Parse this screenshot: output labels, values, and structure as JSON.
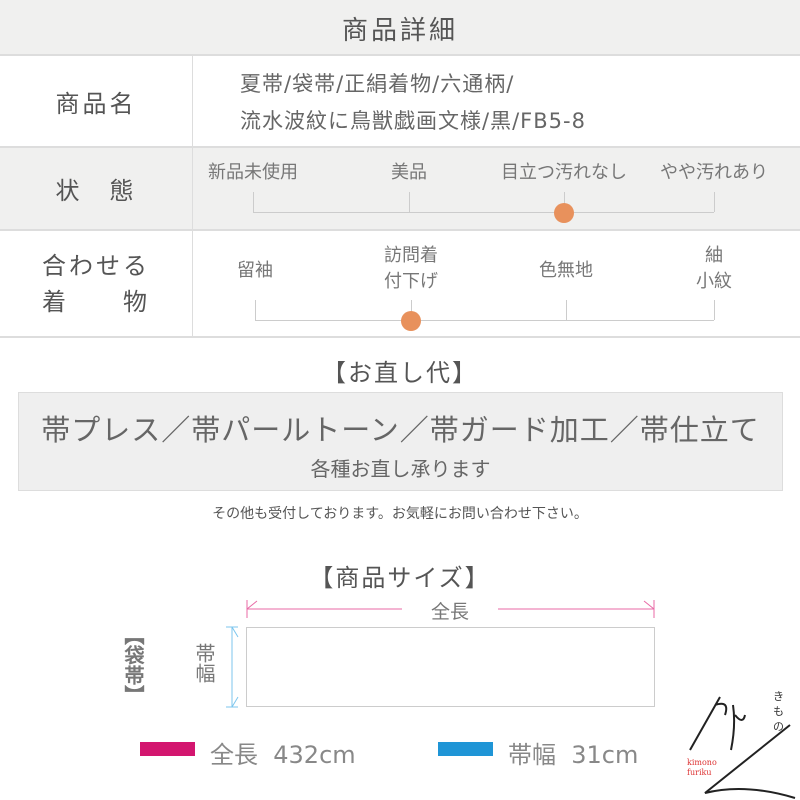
{
  "header": {
    "title": "商品詳細"
  },
  "product_name": {
    "label": "商品名",
    "line1": "夏帯/袋帯/正絹着物/六通柄/",
    "line2": "流水波紋に鳥獣戯画文様/黒/FB5-8"
  },
  "condition": {
    "label": "状　態",
    "options": [
      "新品未使用",
      "美品",
      "目立つ汚れなし",
      "やや汚れあり"
    ],
    "selected_index": 2
  },
  "matching": {
    "label_line1": "合わせる",
    "label_line2": "着　　物",
    "options": [
      [
        "留袖"
      ],
      [
        "訪問着",
        "付下げ"
      ],
      [
        "色無地"
      ],
      [
        "紬",
        "小紋"
      ]
    ],
    "selected_index": 1
  },
  "accent_color": "#e8915c",
  "repair": {
    "title": "【お直し代】",
    "line1": "帯プレス／帯パールトーン／帯ガード加工／帯仕立て",
    "line2": "各種お直し承ります",
    "note": "その他も受付しております。お気軽にお問い合わせ下さい。"
  },
  "size": {
    "title": "【商品サイズ】",
    "type_label": "【袋帯】",
    "length_label": "全長",
    "width_label": "帯幅",
    "legend": [
      {
        "name": "全長",
        "value": "432cm",
        "color": "#d3166f"
      },
      {
        "name": "帯幅",
        "value": "31cm",
        "color": "#1f95d6"
      }
    ]
  },
  "logo": {
    "text": "kimono furiku"
  }
}
